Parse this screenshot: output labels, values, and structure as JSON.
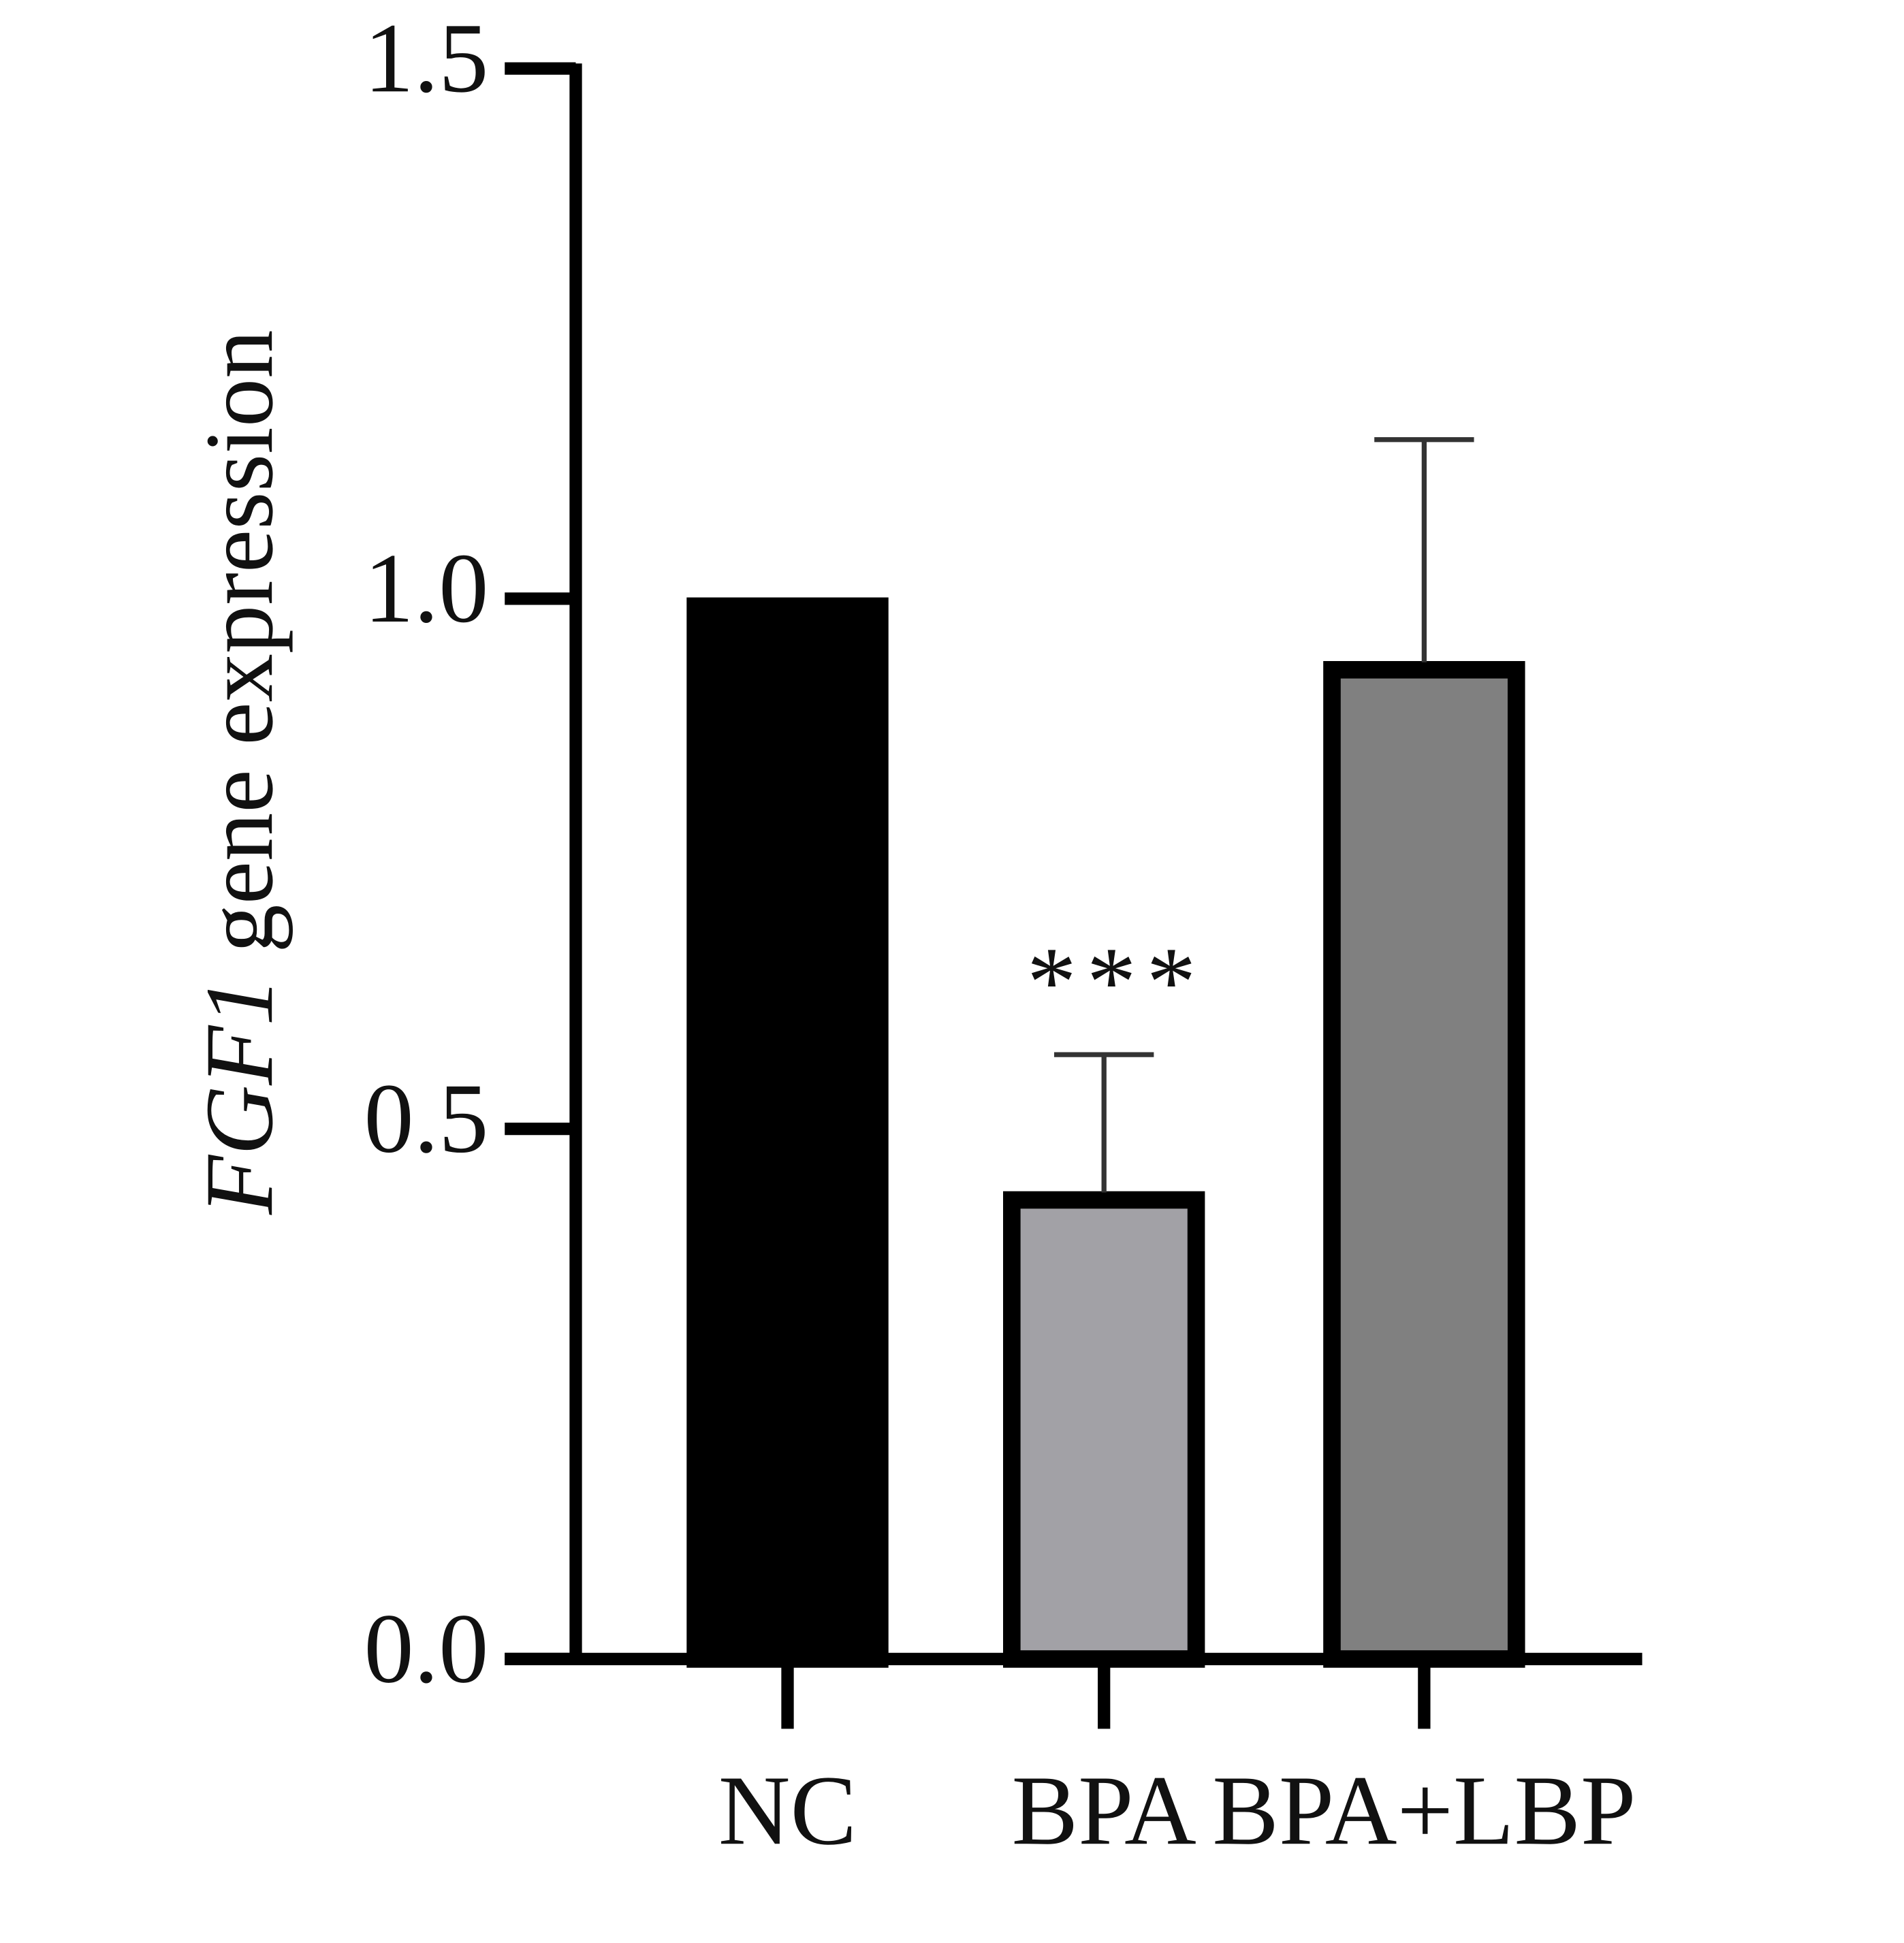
{
  "chart_data": {
    "type": "bar",
    "ylabel_gene": "FGF1",
    "ylabel": "gene expression",
    "categories": [
      "NC",
      "BPA",
      "BPA+LBP"
    ],
    "values": [
      1.0,
      0.44,
      0.94
    ],
    "errors": [
      null,
      0.13,
      0.21
    ],
    "colors": [
      "#000000",
      "#a2a1a6",
      "#808080"
    ],
    "annotations": [
      null,
      "***",
      null
    ],
    "ylim": [
      0,
      1.5
    ],
    "yticks": [
      {
        "value": 0,
        "label": "0.0"
      },
      0.5,
      {
        "value": 1,
        "label": "1.0"
      },
      1.5
    ]
  }
}
